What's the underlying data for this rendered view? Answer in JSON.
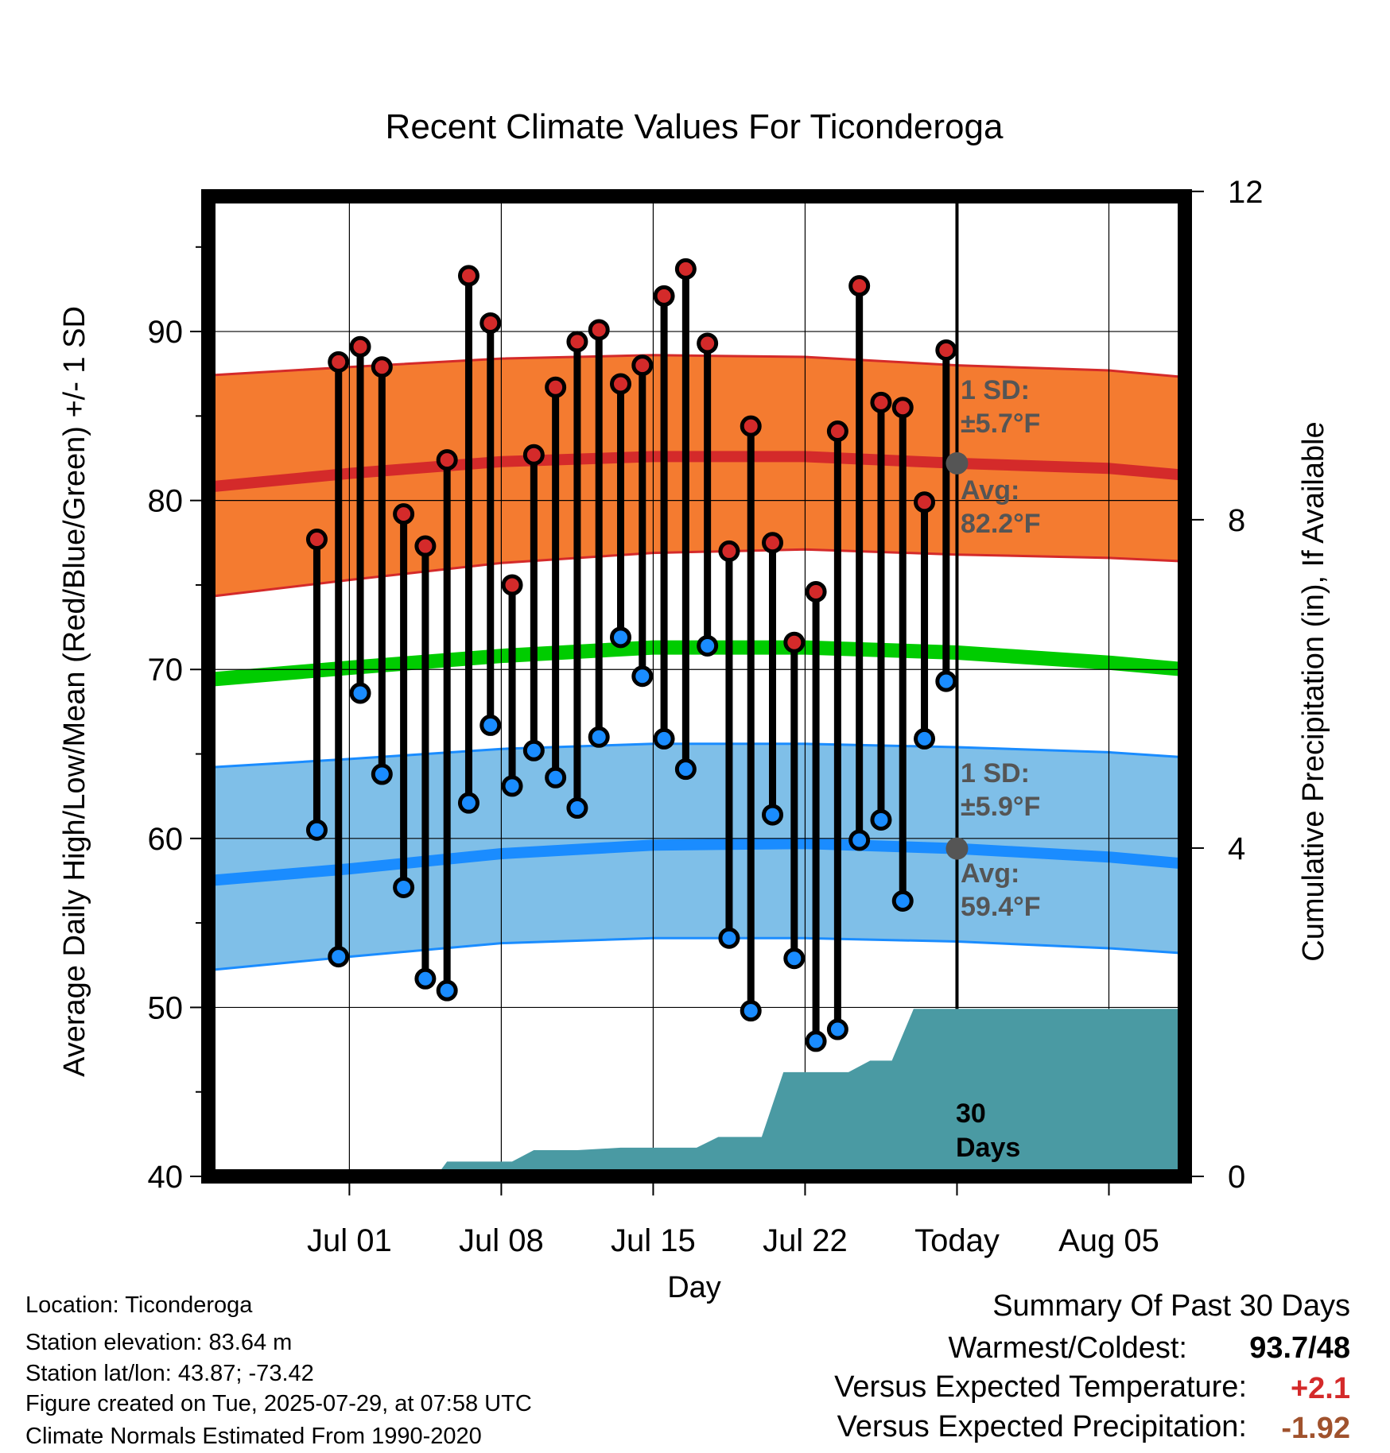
{
  "chart_data": {
    "type": "line",
    "title": "Recent Climate Values For Ticonderoga",
    "xlabel": "Day",
    "ylabel_left": "Average Daily High/Low/Mean (Red/Blue/Green) +/- 1 SD",
    "ylabel_right": "Cumulative Precipitation (in), If Available",
    "ylim": [
      40,
      98
    ],
    "yticks": [
      40,
      50,
      60,
      70,
      80,
      90
    ],
    "y2lim": [
      0,
      11.94
    ],
    "y2ticks": [
      0,
      4,
      8,
      12
    ],
    "x_day_range": [
      -34.5,
      10.5
    ],
    "xticks": [
      {
        "day": -28,
        "label": "Jul 01"
      },
      {
        "day": -21,
        "label": "Jul 08"
      },
      {
        "day": -14,
        "label": "Jul 15"
      },
      {
        "day": -7,
        "label": "Jul 22"
      },
      {
        "day": 0,
        "label": "Today"
      },
      {
        "day": 7,
        "label": "Aug 05"
      }
    ],
    "daily_high": [
      77.7,
      88.2,
      89.1,
      87.9,
      79.2,
      77.3,
      82.4,
      93.3,
      90.5,
      75.0,
      82.7,
      86.7,
      89.4,
      90.1,
      86.9,
      88.0,
      92.1,
      93.7,
      89.3,
      77.0,
      84.4,
      77.5,
      71.6,
      74.6,
      84.1,
      92.7,
      85.8,
      85.5,
      79.9,
      88.9
    ],
    "daily_low": [
      60.5,
      53.0,
      68.6,
      63.8,
      57.1,
      51.7,
      51.0,
      62.1,
      66.7,
      63.1,
      65.2,
      63.6,
      61.8,
      66.0,
      71.9,
      69.6,
      65.9,
      64.1,
      71.4,
      54.1,
      49.8,
      61.4,
      52.9,
      48.0,
      48.7,
      59.9,
      61.1,
      56.3,
      65.9,
      69.3
    ],
    "normals": {
      "day": [
        -34.5,
        -28,
        -21,
        -14,
        -7,
        0,
        7,
        10.5
      ],
      "high_avg": [
        80.8,
        81.6,
        82.3,
        82.6,
        82.6,
        82.2,
        81.9,
        81.5
      ],
      "high_upper": [
        87.4,
        87.9,
        88.4,
        88.6,
        88.5,
        88.0,
        87.7,
        87.3
      ],
      "high_lower": [
        74.3,
        75.3,
        76.3,
        76.9,
        77.1,
        76.8,
        76.6,
        76.4
      ],
      "mean": [
        69.4,
        70.1,
        70.8,
        71.3,
        71.3,
        71.0,
        70.4,
        70.0
      ],
      "low_avg": [
        57.5,
        58.2,
        59.1,
        59.6,
        59.7,
        59.4,
        58.9,
        58.5
      ],
      "low_upper": [
        64.2,
        64.7,
        65.3,
        65.6,
        65.6,
        65.4,
        65.1,
        64.8
      ],
      "low_lower": [
        52.2,
        53.0,
        53.8,
        54.1,
        54.1,
        53.9,
        53.5,
        53.2
      ]
    },
    "precip_cumulative": [
      [
        -34.5,
        0
      ],
      [
        -25.5,
        0
      ],
      [
        -24.0,
        0.0
      ],
      [
        -23.5,
        0.18
      ],
      [
        -21.5,
        0.18
      ],
      [
        -20.5,
        0.18
      ],
      [
        -19.5,
        0.32
      ],
      [
        -17.5,
        0.32
      ],
      [
        -15.5,
        0.35
      ],
      [
        -12.0,
        0.35
      ],
      [
        -11.0,
        0.48
      ],
      [
        -9.0,
        0.48
      ],
      [
        -8.0,
        1.27
      ],
      [
        -5.0,
        1.27
      ],
      [
        -4.0,
        1.41
      ],
      [
        -3.0,
        1.41
      ],
      [
        -2.0,
        2.04
      ],
      [
        10.5,
        2.04
      ]
    ],
    "annotations": {
      "high_sd_label": "1 SD:",
      "high_sd_value": "±5.7°F",
      "high_avg_label": "Avg:",
      "high_avg_value": "82.2°F",
      "low_sd_label": "1 SD:",
      "low_sd_value": "±5.9°F",
      "low_avg_label": "Avg:",
      "low_avg_value": "59.4°F",
      "days_line1": "30",
      "days_line2": "Days"
    },
    "colors": {
      "high_band": "#f47b30",
      "high_line": "#d42a2a",
      "low_band": "#7fbfe8",
      "low_line": "#1a8cff",
      "mean_line": "#00cc00",
      "precip": "#4a9aa3",
      "high_marker": "#d42a2a",
      "low_marker": "#1a8cff",
      "avg_marker": "#555555"
    },
    "grid": true
  },
  "info": {
    "location": "Location: Ticonderoga",
    "elevation": "Station elevation: 83.64 m",
    "latlon": "Station lat/lon: 43.87; -73.42",
    "created": "Figure created on Tue, 2025-07-29, at 07:58 UTC",
    "normals": "Climate Normals Estimated From 1990-2020"
  },
  "summary": {
    "title": "Summary Of Past 30 Days",
    "warmest_label": "Warmest/Coldest:",
    "warmest_value": "93.7/48",
    "temp_label": "Versus Expected Temperature:",
    "temp_value": "+2.1",
    "temp_color": "#d42a2a",
    "precip_label": "Versus Expected Precipitation:",
    "precip_value": "-1.92",
    "precip_color": "#a0522d"
  }
}
